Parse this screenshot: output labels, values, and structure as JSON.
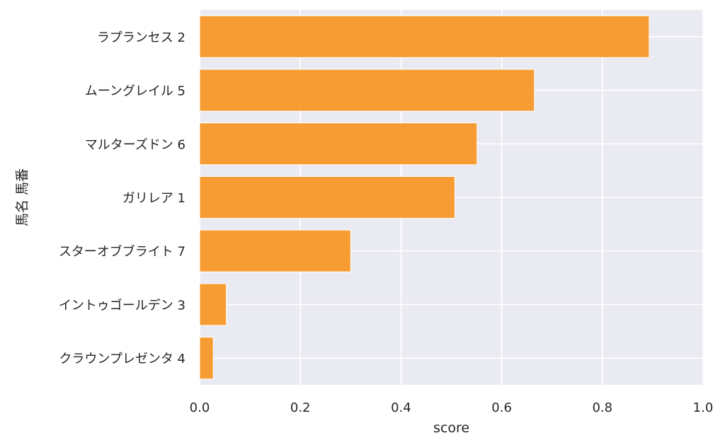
{
  "chart_data": {
    "type": "bar",
    "orientation": "horizontal",
    "categories": [
      "ラプランセス 2",
      "ムーングレイル 5",
      "マルターズドン 6",
      "ガリレア 1",
      "スターオブブライト 7",
      "イントゥゴールデン 3",
      "クラウンプレゼンタ 4"
    ],
    "values": [
      0.893,
      0.665,
      0.551,
      0.507,
      0.3,
      0.053,
      0.027
    ],
    "xlabel": "score",
    "ylabel": "馬名 馬番",
    "xlim": [
      0.0,
      1.0
    ],
    "xticks": [
      "0.0",
      "0.2",
      "0.4",
      "0.6",
      "0.8",
      "1.0"
    ],
    "grid": true,
    "bar_color": "#f7931e",
    "background_color": "#eaeaf2"
  }
}
